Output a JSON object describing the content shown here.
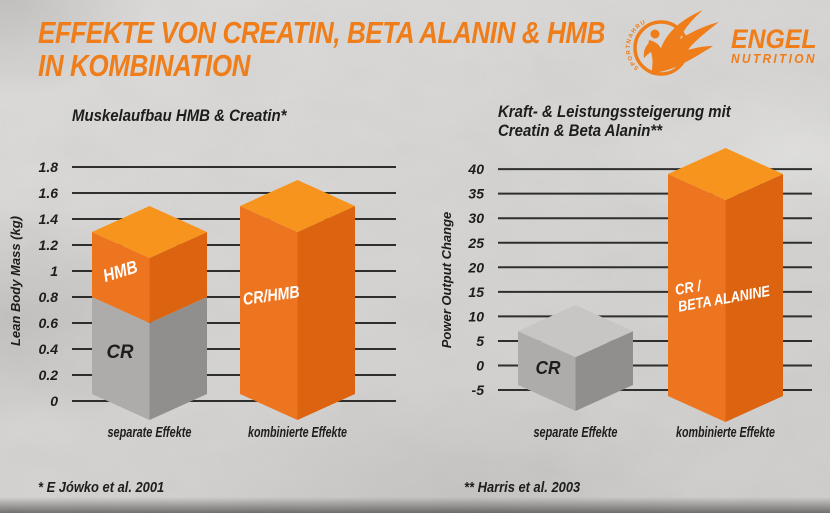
{
  "header": {
    "title_line1": "EFFEKTE VON CREATIN, BETA ALANIN & HMB",
    "title_line2": "IN KOMBINATION"
  },
  "logo": {
    "brand_top": "ENGEL",
    "brand_bottom": "NUTRITION",
    "badge_text": "SPORTNAHRUNG"
  },
  "footnotes": {
    "left": "* E Jówko et al. 2001",
    "right": "** Harris et al. 2003"
  },
  "colors": {
    "accent_orange": "#ef7d1a",
    "bar_orange_top": "#f7941e",
    "bar_orange_left": "#ee7520",
    "bar_orange_right": "#dc6410",
    "bar_gray_top": "#c7c6c4",
    "bar_gray_left": "#adacaa",
    "bar_gray_right": "#908f8d",
    "ink": "#1d1d1b",
    "background": "#d6d5d3",
    "label_white": "#ffffff"
  },
  "chart_data": [
    {
      "type": "bar",
      "variant": "3d-stacked-bar",
      "title": "Muskelaufbau HMB & Creatin*",
      "title_lines": [
        "Muskelaufbau HMB & Creatin*"
      ],
      "ylabel": "Lean Body Mass (kg)",
      "yticks": [
        1.8,
        1.6,
        1.4,
        1.2,
        1,
        0.8,
        0.6,
        0.4,
        0.2,
        0
      ],
      "ytick_labels": [
        "1.8",
        "1.6",
        "1.4",
        "1.2",
        "1",
        "0.8",
        "0.6",
        "0.4",
        "0.2",
        "0"
      ],
      "ylim": [
        0,
        1.9
      ],
      "grid": true,
      "legend": "none",
      "categories": [
        "separate Effekte",
        "kombinierte Effekte"
      ],
      "bars": [
        {
          "category": "separate Effekte",
          "total": 1.3,
          "segments": [
            {
              "label": "CR",
              "value": 0.8,
              "palette": "gray"
            },
            {
              "label": "HMB",
              "value": 0.5,
              "palette": "orange"
            }
          ]
        },
        {
          "category": "kombinierte Effekte",
          "total": 1.5,
          "segments": [
            {
              "label": "CR/HMB",
              "value": 1.5,
              "palette": "orange"
            }
          ]
        }
      ],
      "source": "* E Jówko et al. 2001"
    },
    {
      "type": "bar",
      "variant": "3d-bar",
      "title": "Kraft- & Leistungssteigerung mit Creatin & Beta Alanin**",
      "title_lines": [
        "Kraft- & Leistungssteigerung mit",
        "Creatin & Beta Alanin**"
      ],
      "ylabel": "Power Output Change",
      "yticks": [
        40,
        35,
        30,
        25,
        20,
        15,
        10,
        5,
        0,
        -5
      ],
      "ytick_labels": [
        "40",
        "35",
        "30",
        "25",
        "20",
        "15",
        "10",
        "5",
        "0",
        "-5"
      ],
      "ylim": [
        -5,
        43
      ],
      "grid": true,
      "legend": "none",
      "categories": [
        "separate Effekte",
        "kombinierte Effekte"
      ],
      "bars": [
        {
          "category": "separate Effekte",
          "total": 7,
          "segments": [
            {
              "label": "CR",
              "value": 7,
              "palette": "gray"
            }
          ]
        },
        {
          "category": "kombinierte Effekte",
          "total": 39,
          "segments": [
            {
              "label": "CR / BETA ALANINE",
              "label_lines": [
                "CR /",
                "BETA ALANINE"
              ],
              "value": 39,
              "palette": "orange"
            }
          ]
        }
      ],
      "source": "** Harris et al. 2003"
    }
  ]
}
